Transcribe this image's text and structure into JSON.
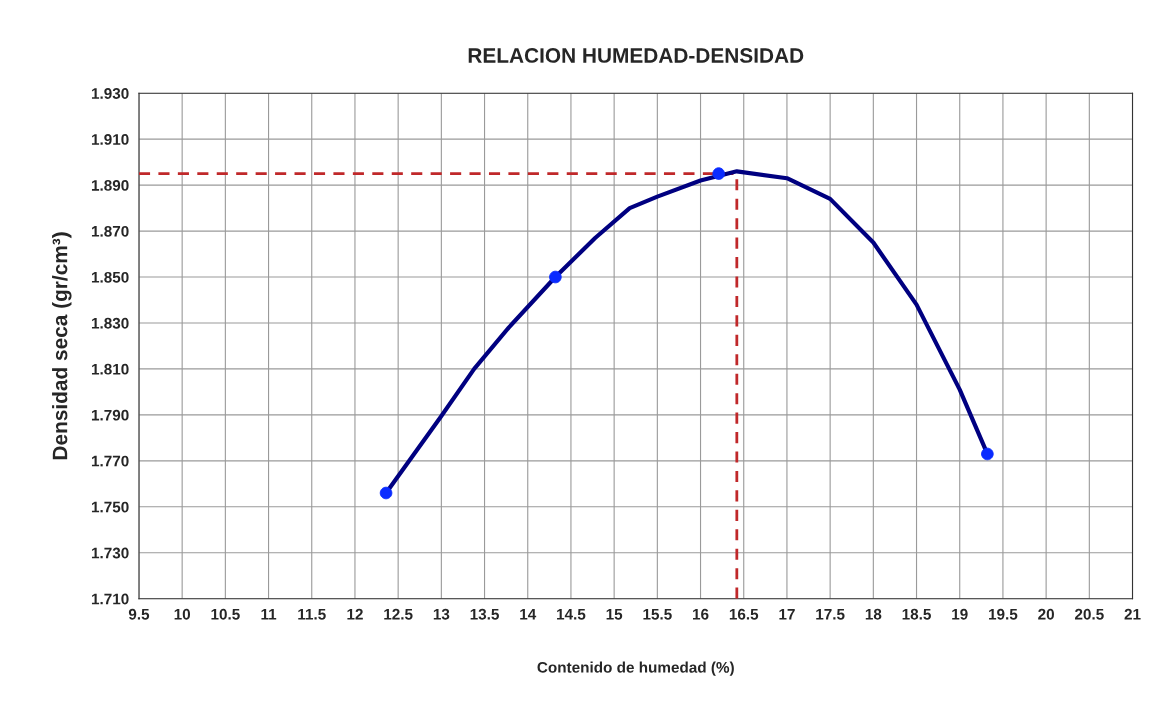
{
  "chart_data": {
    "type": "line",
    "title": "RELACION HUMEDAD-DENSIDAD",
    "xlabel": "Contenido de humedad (%)",
    "ylabel": "Densidad seca (gr/cm³)",
    "series": [
      {
        "color": "#000080",
        "marker": "none",
        "x": [
          12.36,
          12.99,
          13.38,
          13.78,
          14.32,
          14.78,
          15.18,
          15.5,
          16.0,
          16.42,
          17.0,
          17.5,
          18.0,
          18.5,
          19.0,
          19.32
        ],
        "values": [
          1.756,
          1.789,
          1.81,
          1.828,
          1.85,
          1.867,
          1.88,
          1.885,
          1.892,
          1.896,
          1.893,
          1.884,
          1.865,
          1.838,
          1.801,
          1.773
        ]
      },
      {
        "type": "scatter",
        "color": "#0a2bff",
        "marker": "circle",
        "x": [
          12.36,
          14.32,
          16.21,
          19.32
        ],
        "values": [
          1.756,
          1.85,
          1.895,
          1.773
        ]
      }
    ],
    "ref_lines": [
      {
        "axis": "x",
        "value": 16.42,
        "color": "#c0282a",
        "line_style": "dashed"
      },
      {
        "axis": "y",
        "value": 1.895,
        "color": "#c0282a",
        "line_style": "dashed"
      }
    ],
    "xlim": [
      9.5,
      21
    ],
    "xticks": [
      9.5,
      10,
      10.5,
      11,
      11.5,
      12,
      12.5,
      13,
      13.5,
      14,
      14.5,
      15,
      15.5,
      16,
      16.5,
      17,
      17.5,
      18,
      18.5,
      19,
      19.5,
      20,
      20.5,
      21
    ],
    "ylim": [
      1.71,
      1.93
    ],
    "yticks": [
      {
        "value": 1.71,
        "label": "1.710"
      },
      {
        "value": 1.73,
        "label": "1.730"
      },
      {
        "value": 1.75,
        "label": "1.750"
      },
      {
        "value": 1.77,
        "label": "1.770"
      },
      {
        "value": 1.79,
        "label": "1.790"
      },
      {
        "value": 1.81,
        "label": "1.810"
      },
      {
        "value": 1.83,
        "label": "1.830"
      },
      {
        "value": 1.85,
        "label": "1.850"
      },
      {
        "value": 1.87,
        "label": "1.870"
      },
      {
        "value": 1.89,
        "label": "1.890"
      },
      {
        "value": 1.91,
        "label": "1.910"
      },
      {
        "value": 1.93,
        "label": "1.930"
      }
    ],
    "grid": true,
    "legend": false
  }
}
